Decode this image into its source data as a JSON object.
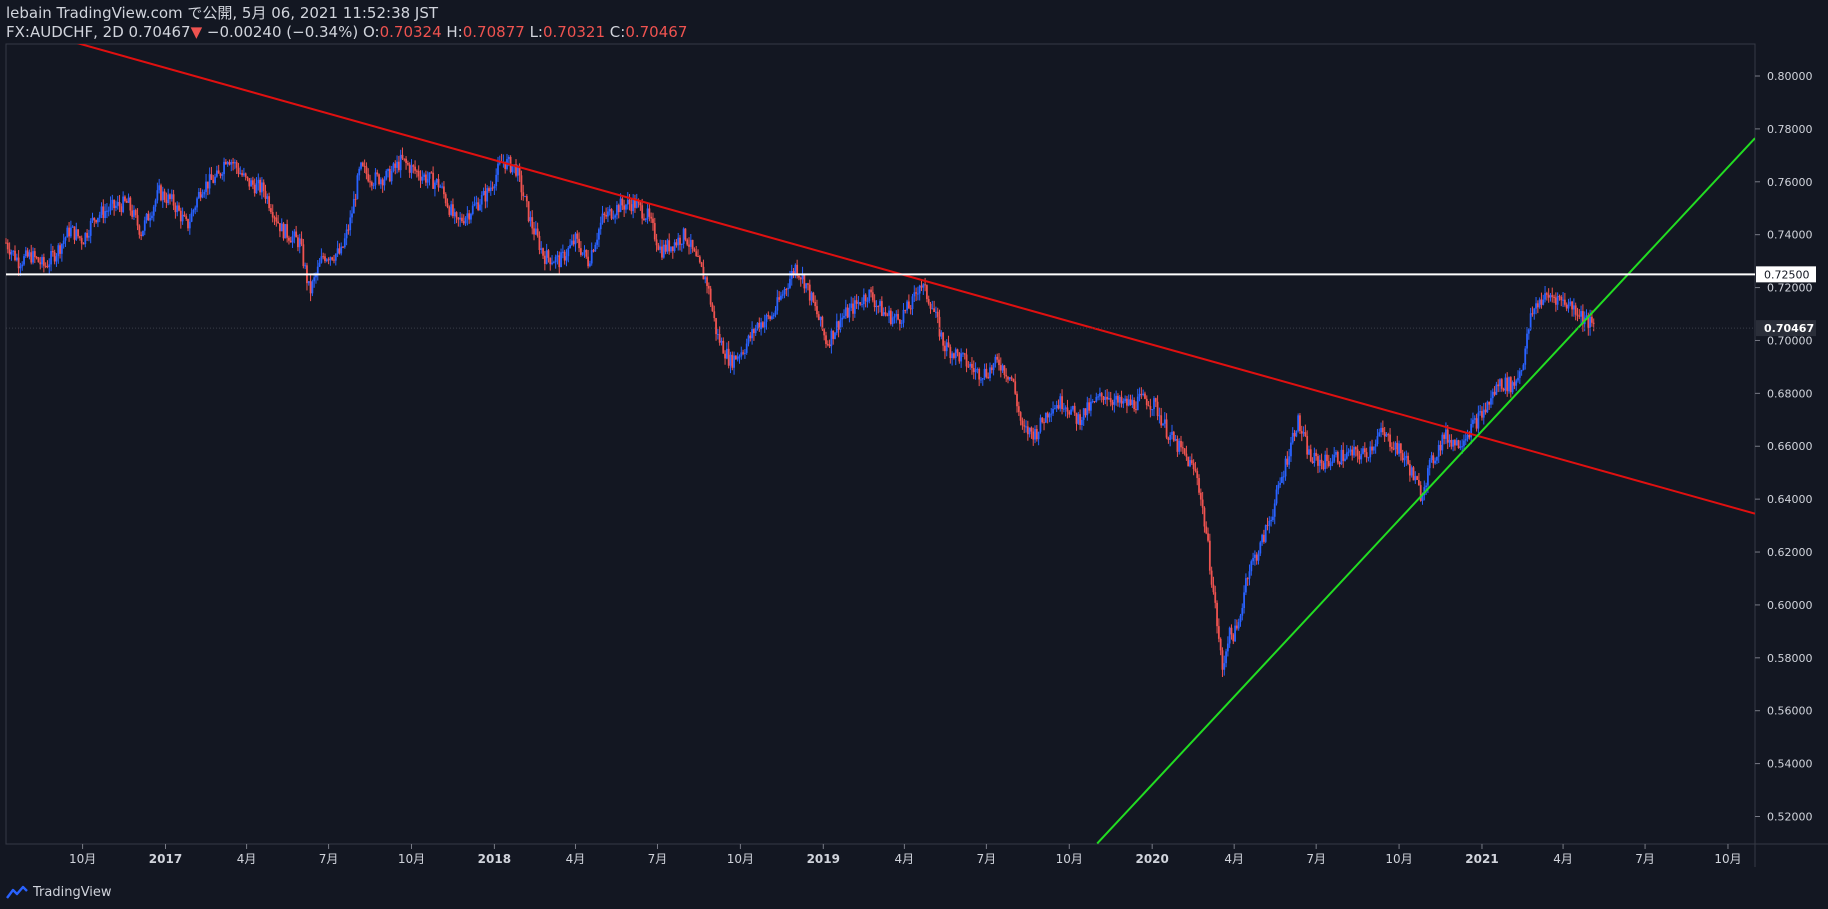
{
  "header": {
    "publisher": "lebain TradingView.com で公開, 5月 06, 2021 11:52:38 JST",
    "symbol": "FX:AUDCHF, 2D",
    "last": "0.70467",
    "change_arrow": "▼",
    "change": "−0.00240 (−0.34%)",
    "open_label": "O:",
    "open": "0.70324",
    "high_label": "H:",
    "high": "0.70877",
    "low_label": "L:",
    "low": "0.70321",
    "close_label": "C:",
    "close": "0.70467"
  },
  "footer": {
    "brand": "TradingView",
    "logo_icon": "tradingview-logo-icon"
  },
  "colors": {
    "background": "#131722",
    "up": "#2962ff",
    "down": "#ef5350",
    "resistance": "#e01010",
    "support": "#22dd22",
    "level": "#ffffff",
    "text": "#d1d4dc",
    "grid": "#2a2e39"
  },
  "chart_data": {
    "type": "candlestick",
    "symbol": "FX:AUDCHF",
    "interval": "2D",
    "yaxis": {
      "ticks": [
        "0.52000",
        "0.54000",
        "0.56000",
        "0.58000",
        "0.60000",
        "0.62000",
        "0.64000",
        "0.66000",
        "0.68000",
        "0.70000",
        "0.72000",
        "0.74000",
        "0.76000",
        "0.78000",
        "0.80000"
      ],
      "ylim": [
        0.5096,
        0.8121
      ]
    },
    "xaxis": {
      "ticks": [
        "10月",
        "2017",
        "4月",
        "7月",
        "10月",
        "2018",
        "4月",
        "7月",
        "10月",
        "2019",
        "4月",
        "7月",
        "10月",
        "2020",
        "4月",
        "7月",
        "10月",
        "2021",
        "4月",
        "7月",
        "10月"
      ],
      "tick_dates": [
        "2016-10-01",
        "2017-01-01",
        "2017-04-01",
        "2017-07-01",
        "2017-10-01",
        "2018-01-01",
        "2018-04-01",
        "2018-07-01",
        "2018-10-01",
        "2019-01-01",
        "2019-04-01",
        "2019-07-01",
        "2019-10-01",
        "2020-01-01",
        "2020-04-01",
        "2020-07-01",
        "2020-10-01",
        "2021-01-01",
        "2021-04-01",
        "2021-07-01",
        "2021-10-01"
      ],
      "range": [
        "2016-07-08",
        "2021-10-31"
      ]
    },
    "price_path": [
      [
        "2016-07-08",
        0.737
      ],
      [
        "2016-07-22",
        0.73
      ],
      [
        "2016-08-05",
        0.732
      ],
      [
        "2016-08-20",
        0.728
      ],
      [
        "2016-09-03",
        0.734
      ],
      [
        "2016-09-17",
        0.742
      ],
      [
        "2016-10-01",
        0.738
      ],
      [
        "2016-10-15",
        0.747
      ],
      [
        "2016-11-01",
        0.75
      ],
      [
        "2016-11-20",
        0.752
      ],
      [
        "2016-12-05",
        0.741
      ],
      [
        "2016-12-25",
        0.756
      ],
      [
        "2017-01-10",
        0.752
      ],
      [
        "2017-01-25",
        0.743
      ],
      [
        "2017-02-10",
        0.758
      ],
      [
        "2017-03-01",
        0.762
      ],
      [
        "2017-03-10",
        0.77
      ],
      [
        "2017-03-20",
        0.766
      ],
      [
        "2017-04-01",
        0.76
      ],
      [
        "2017-04-20",
        0.757
      ],
      [
        "2017-05-10",
        0.742
      ],
      [
        "2017-05-30",
        0.737
      ],
      [
        "2017-06-10",
        0.718
      ],
      [
        "2017-06-25",
        0.732
      ],
      [
        "2017-07-15",
        0.733
      ],
      [
        "2017-07-25",
        0.745
      ],
      [
        "2017-08-05",
        0.765
      ],
      [
        "2017-08-20",
        0.761
      ],
      [
        "2017-09-05",
        0.762
      ],
      [
        "2017-09-20",
        0.768
      ],
      [
        "2017-10-01",
        0.765
      ],
      [
        "2017-10-15",
        0.762
      ],
      [
        "2017-11-01",
        0.759
      ],
      [
        "2017-11-20",
        0.744
      ],
      [
        "2017-12-05",
        0.749
      ],
      [
        "2017-12-25",
        0.756
      ],
      [
        "2018-01-10",
        0.768
      ],
      [
        "2018-01-25",
        0.765
      ],
      [
        "2018-02-10",
        0.745
      ],
      [
        "2018-02-25",
        0.732
      ],
      [
        "2018-03-15",
        0.73
      ],
      [
        "2018-04-01",
        0.738
      ],
      [
        "2018-04-15",
        0.73
      ],
      [
        "2018-05-01",
        0.746
      ],
      [
        "2018-05-20",
        0.751
      ],
      [
        "2018-06-05",
        0.752
      ],
      [
        "2018-06-20",
        0.747
      ],
      [
        "2018-07-05",
        0.734
      ],
      [
        "2018-07-20",
        0.737
      ],
      [
        "2018-08-01",
        0.74
      ],
      [
        "2018-08-12",
        0.731
      ],
      [
        "2018-08-25",
        0.722
      ],
      [
        "2018-09-05",
        0.702
      ],
      [
        "2018-09-20",
        0.692
      ],
      [
        "2018-10-05",
        0.697
      ],
      [
        "2018-10-20",
        0.706
      ],
      [
        "2018-11-05",
        0.709
      ],
      [
        "2018-11-20",
        0.72
      ],
      [
        "2018-12-01",
        0.728
      ],
      [
        "2018-12-12",
        0.722
      ],
      [
        "2018-12-25",
        0.71
      ],
      [
        "2019-01-05",
        0.699
      ],
      [
        "2019-01-20",
        0.708
      ],
      [
        "2019-02-05",
        0.713
      ],
      [
        "2019-02-20",
        0.718
      ],
      [
        "2019-03-10",
        0.71
      ],
      [
        "2019-03-25",
        0.708
      ],
      [
        "2019-04-10",
        0.714
      ],
      [
        "2019-04-18",
        0.722
      ],
      [
        "2019-05-01",
        0.714
      ],
      [
        "2019-05-15",
        0.698
      ],
      [
        "2019-06-01",
        0.694
      ],
      [
        "2019-06-20",
        0.688
      ],
      [
        "2019-07-01",
        0.688
      ],
      [
        "2019-07-15",
        0.692
      ],
      [
        "2019-07-30",
        0.685
      ],
      [
        "2019-08-10",
        0.666
      ],
      [
        "2019-08-25",
        0.665
      ],
      [
        "2019-09-10",
        0.675
      ],
      [
        "2019-09-25",
        0.677
      ],
      [
        "2019-10-10",
        0.67
      ],
      [
        "2019-10-25",
        0.675
      ],
      [
        "2019-11-10",
        0.68
      ],
      [
        "2019-11-25",
        0.676
      ],
      [
        "2019-12-10",
        0.676
      ],
      [
        "2019-12-25",
        0.678
      ],
      [
        "2020-01-05",
        0.675
      ],
      [
        "2020-01-20",
        0.664
      ],
      [
        "2020-02-05",
        0.657
      ],
      [
        "2020-02-20",
        0.649
      ],
      [
        "2020-03-01",
        0.627
      ],
      [
        "2020-03-10",
        0.602
      ],
      [
        "2020-03-19",
        0.575
      ],
      [
        "2020-03-25",
        0.588
      ],
      [
        "2020-04-05",
        0.59
      ],
      [
        "2020-04-15",
        0.612
      ],
      [
        "2020-04-30",
        0.622
      ],
      [
        "2020-05-15",
        0.637
      ],
      [
        "2020-05-30",
        0.656
      ],
      [
        "2020-06-10",
        0.67
      ],
      [
        "2020-06-25",
        0.655
      ],
      [
        "2020-07-10",
        0.654
      ],
      [
        "2020-07-25",
        0.656
      ],
      [
        "2020-08-10",
        0.657
      ],
      [
        "2020-08-25",
        0.657
      ],
      [
        "2020-09-10",
        0.665
      ],
      [
        "2020-09-25",
        0.661
      ],
      [
        "2020-10-10",
        0.654
      ],
      [
        "2020-10-25",
        0.642
      ],
      [
        "2020-11-05",
        0.653
      ],
      [
        "2020-11-20",
        0.664
      ],
      [
        "2020-12-05",
        0.661
      ],
      [
        "2020-12-20",
        0.667
      ],
      [
        "2021-01-05",
        0.674
      ],
      [
        "2021-01-20",
        0.684
      ],
      [
        "2021-02-05",
        0.683
      ],
      [
        "2021-02-15",
        0.691
      ],
      [
        "2021-02-25",
        0.71
      ],
      [
        "2021-03-05",
        0.715
      ],
      [
        "2021-03-20",
        0.717
      ],
      [
        "2021-04-01",
        0.715
      ],
      [
        "2021-04-15",
        0.712
      ],
      [
        "2021-04-25",
        0.708
      ],
      [
        "2021-05-06",
        0.7047
      ]
    ],
    "resistance_line": {
      "from": [
        "2016-07-08",
        0.82
      ],
      "to": [
        "2021-10-31",
        0.6345
      ]
    },
    "support_line": {
      "from": [
        "2019-11-01",
        0.5098
      ],
      "to": [
        "2021-10-31",
        0.7765
      ]
    },
    "horizontal_level": {
      "value": 0.725,
      "label": "0.72500"
    },
    "last_price_label": "0.70467"
  }
}
